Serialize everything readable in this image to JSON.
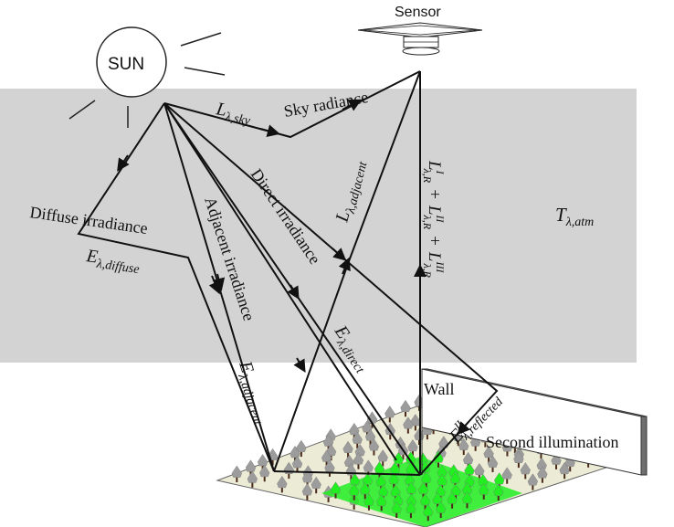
{
  "diagram": {
    "sensor_label": "Sensor",
    "sun_label": "SUN",
    "sky_radiance_label": "Sky radiance",
    "l_sky": {
      "main": "L",
      "sub": "λ,sky"
    },
    "l_adjacent": {
      "main": "L",
      "sub": "λ,adjacent"
    },
    "sensor_sum": {
      "terms": [
        {
          "main": "L",
          "sup": "I",
          "sub": "λ,R"
        },
        {
          "main": "L",
          "sup": "II",
          "sub": "λ,R"
        },
        {
          "main": "L",
          "sup": "III",
          "sub": "λ,R"
        }
      ],
      "operator": "+"
    },
    "t_atm": {
      "main": "T",
      "sub": "λ,atm"
    },
    "diffuse_irradiance_label": "Diffuse irradiance",
    "e_diffuse": {
      "main": "E",
      "sub": "λ,diffuse"
    },
    "adjacent_irradiance_label": "Adjacent irradiance",
    "e_adjacent": {
      "main": "E",
      "sub": "λ,adjacent"
    },
    "direct_irradiance_label": "Direct irradiance",
    "e_direct": {
      "main": "E",
      "sub": "λ,direct"
    },
    "wall_label": "Wall",
    "e_reflected": {
      "main": "E",
      "sup": "II",
      "sub": "λ,reflected"
    },
    "second_illumination_label": "Second illumination",
    "colors": {
      "atmosphere": "#d3d3d3",
      "ground": "#ecebd6",
      "sunlit_forest": "#22ee22",
      "trees": "#9c9c9c",
      "trunk": "#4a2a18",
      "lines": "#111111",
      "wall": "#8c8c8c"
    }
  }
}
